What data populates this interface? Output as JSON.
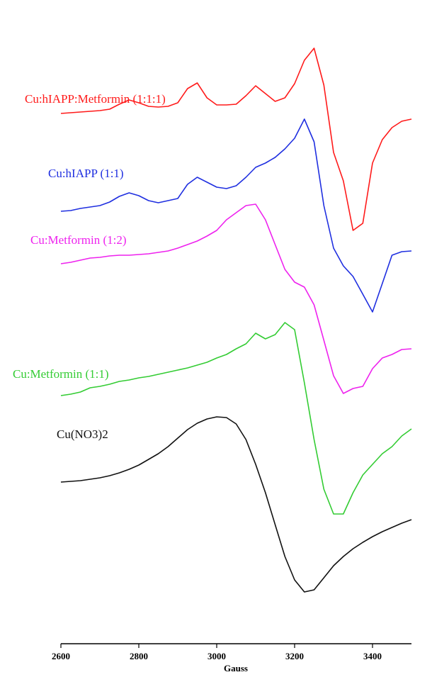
{
  "chart_data": {
    "type": "line",
    "x_label": "Gauss",
    "xlim": [
      2600,
      3500
    ],
    "xticks": [
      2600,
      2800,
      3000,
      3200,
      3400
    ],
    "ylim": [
      0,
      858
    ],
    "x": [
      2600,
      2625,
      2650,
      2675,
      2700,
      2725,
      2750,
      2775,
      2800,
      2825,
      2850,
      2875,
      2900,
      2925,
      2950,
      2975,
      3000,
      3025,
      3050,
      3075,
      3100,
      3125,
      3150,
      3175,
      3200,
      3225,
      3250,
      3275,
      3300,
      3325,
      3350,
      3375,
      3400,
      3425,
      3450,
      3475,
      3500
    ],
    "series": [
      {
        "name": "Cu:hIAPP:Metformin (1:1:1)",
        "color": "#ff1a1a",
        "values": [
          748,
          749,
          750,
          751,
          752,
          754,
          761,
          767,
          763,
          758,
          757,
          758,
          763,
          783,
          791,
          770,
          760,
          760,
          761,
          773,
          787,
          776,
          765,
          770,
          790,
          823,
          840,
          788,
          693,
          653,
          583,
          593,
          678,
          711,
          728,
          737,
          740
        ]
      },
      {
        "name": "Cu:hIAPP (1:1)",
        "color": "#1f2fe0",
        "values": [
          610,
          611,
          614,
          616,
          618,
          623,
          631,
          636,
          632,
          625,
          622,
          625,
          628,
          648,
          658,
          651,
          644,
          642,
          646,
          658,
          672,
          678,
          686,
          698,
          713,
          740,
          708,
          618,
          558,
          533,
          518,
          493,
          468,
          508,
          548,
          553,
          554
        ]
      },
      {
        "name": "Cu:Metformin (1:2)",
        "color": "#ee22ee",
        "values": [
          536,
          538,
          541,
          544,
          545,
          547,
          548,
          548,
          549,
          550,
          552,
          554,
          558,
          563,
          568,
          575,
          583,
          598,
          608,
          618,
          620,
          598,
          563,
          528,
          510,
          503,
          478,
          428,
          378,
          353,
          360,
          363,
          388,
          403,
          408,
          415,
          416
        ]
      },
      {
        "name": "Cu:Metformin (1:1)",
        "color": "#33cc33",
        "values": [
          350,
          352,
          355,
          361,
          363,
          366,
          370,
          372,
          375,
          377,
          380,
          383,
          386,
          389,
          393,
          397,
          403,
          408,
          416,
          423,
          438,
          430,
          436,
          453,
          443,
          368,
          288,
          218,
          183,
          183,
          213,
          238,
          253,
          268,
          278,
          293,
          303
        ]
      },
      {
        "name": "Cu(NO3)2",
        "color": "#111111",
        "values": [
          228,
          229,
          230,
          232,
          234,
          237,
          241,
          246,
          252,
          260,
          268,
          278,
          290,
          302,
          311,
          317,
          320,
          319,
          310,
          288,
          253,
          213,
          168,
          123,
          90,
          73,
          76,
          93,
          110,
          123,
          134,
          143,
          151,
          158,
          164,
          170,
          175
        ]
      }
    ]
  }
}
